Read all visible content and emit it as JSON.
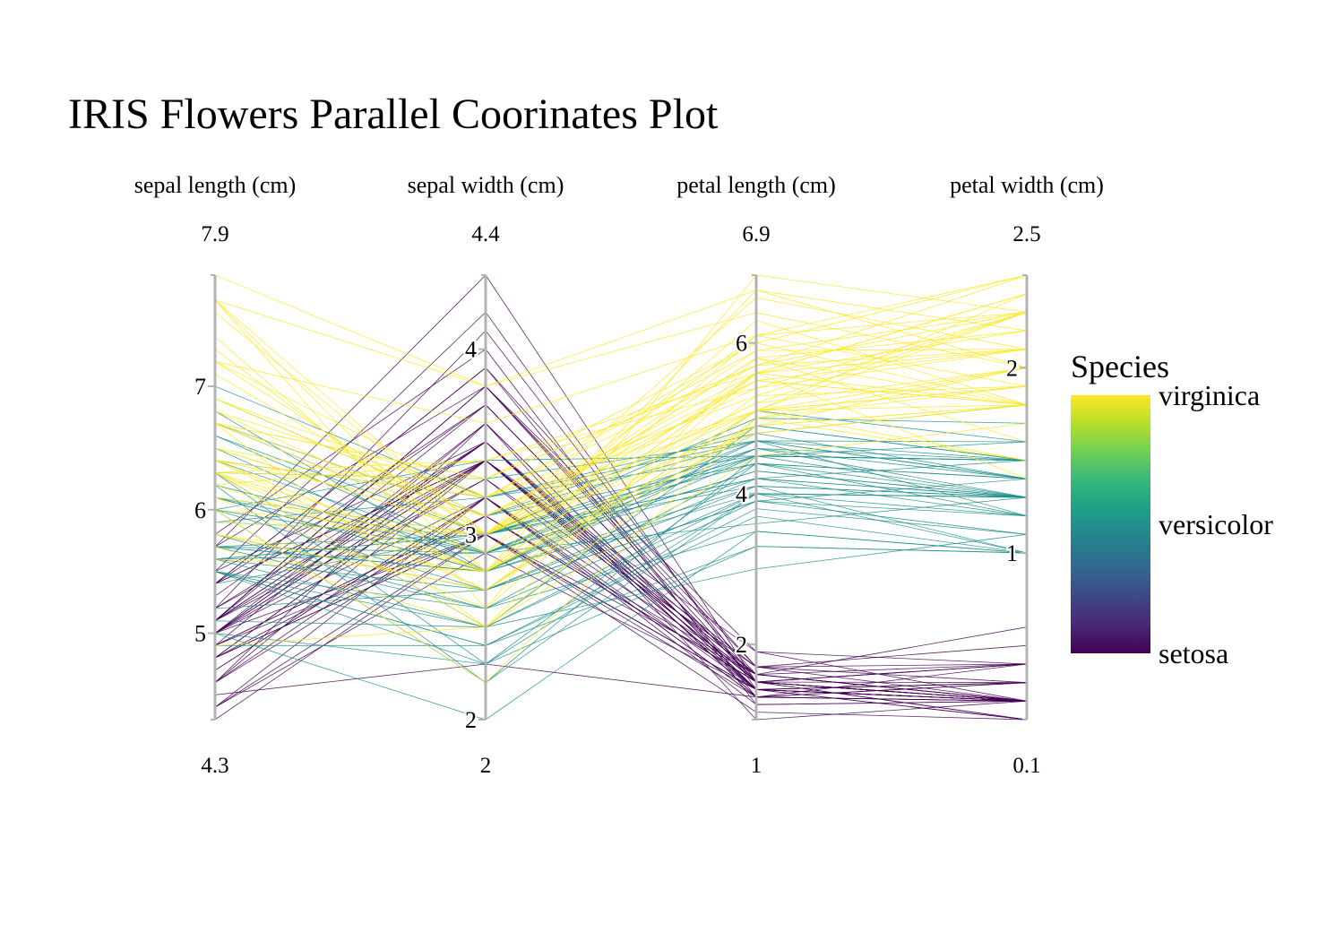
{
  "chart_data": {
    "type": "parallel_coordinates",
    "title": "IRIS Flowers Parallel Coorinates Plot",
    "dimensions": [
      {
        "label": "sepal length (cm)",
        "range": [
          4.3,
          7.9
        ],
        "range_labels": [
          "4.3",
          "7.9"
        ],
        "ticks": [
          5,
          6,
          7
        ]
      },
      {
        "label": "sepal width (cm)",
        "range": [
          2,
          4.4
        ],
        "range_labels": [
          "2",
          "4.4"
        ],
        "ticks": [
          2,
          3,
          4
        ]
      },
      {
        "label": "petal length (cm)",
        "range": [
          1,
          6.9
        ],
        "range_labels": [
          "1",
          "6.9"
        ],
        "ticks": [
          2,
          4,
          6
        ]
      },
      {
        "label": "petal width (cm)",
        "range": [
          0.1,
          2.5
        ],
        "range_labels": [
          "0.1",
          "2.5"
        ],
        "ticks": [
          1,
          2
        ]
      }
    ],
    "color_field": "Species",
    "colorscale": "viridis",
    "legend": {
      "title": "Species",
      "labels": [
        "virginica",
        "versicolor",
        "setosa"
      ],
      "position": "right"
    },
    "colors": {
      "setosa": "#440154",
      "versicolor": "#21918c",
      "virginica": "#fde725",
      "axis": "#b3b3b3"
    },
    "species_order": [
      "setosa",
      "versicolor",
      "virginica"
    ],
    "rows": [
      [
        5.1,
        3.5,
        1.4,
        0.2,
        0
      ],
      [
        4.9,
        3.0,
        1.4,
        0.2,
        0
      ],
      [
        4.7,
        3.2,
        1.3,
        0.2,
        0
      ],
      [
        4.6,
        3.1,
        1.5,
        0.2,
        0
      ],
      [
        5.0,
        3.6,
        1.4,
        0.2,
        0
      ],
      [
        5.4,
        3.9,
        1.7,
        0.4,
        0
      ],
      [
        4.6,
        3.4,
        1.4,
        0.3,
        0
      ],
      [
        5.0,
        3.4,
        1.5,
        0.2,
        0
      ],
      [
        4.4,
        2.9,
        1.4,
        0.2,
        0
      ],
      [
        4.9,
        3.1,
        1.5,
        0.1,
        0
      ],
      [
        5.4,
        3.7,
        1.5,
        0.2,
        0
      ],
      [
        4.8,
        3.4,
        1.6,
        0.2,
        0
      ],
      [
        4.8,
        3.0,
        1.4,
        0.1,
        0
      ],
      [
        4.3,
        3.0,
        1.1,
        0.1,
        0
      ],
      [
        5.8,
        4.0,
        1.2,
        0.2,
        0
      ],
      [
        5.7,
        4.4,
        1.5,
        0.4,
        0
      ],
      [
        5.4,
        3.9,
        1.3,
        0.4,
        0
      ],
      [
        5.1,
        3.5,
        1.4,
        0.3,
        0
      ],
      [
        5.7,
        3.8,
        1.7,
        0.3,
        0
      ],
      [
        5.1,
        3.8,
        1.5,
        0.3,
        0
      ],
      [
        5.4,
        3.4,
        1.7,
        0.2,
        0
      ],
      [
        5.1,
        3.7,
        1.5,
        0.4,
        0
      ],
      [
        4.6,
        3.6,
        1.0,
        0.2,
        0
      ],
      [
        5.1,
        3.3,
        1.7,
        0.5,
        0
      ],
      [
        4.8,
        3.4,
        1.9,
        0.2,
        0
      ],
      [
        5.0,
        3.0,
        1.6,
        0.2,
        0
      ],
      [
        5.0,
        3.4,
        1.6,
        0.4,
        0
      ],
      [
        5.2,
        3.5,
        1.5,
        0.2,
        0
      ],
      [
        5.2,
        3.4,
        1.4,
        0.2,
        0
      ],
      [
        4.7,
        3.2,
        1.6,
        0.2,
        0
      ],
      [
        4.8,
        3.1,
        1.6,
        0.2,
        0
      ],
      [
        5.4,
        3.4,
        1.5,
        0.4,
        0
      ],
      [
        5.2,
        4.1,
        1.5,
        0.1,
        0
      ],
      [
        5.5,
        4.2,
        1.4,
        0.2,
        0
      ],
      [
        4.9,
        3.1,
        1.5,
        0.2,
        0
      ],
      [
        5.0,
        3.2,
        1.2,
        0.2,
        0
      ],
      [
        5.5,
        3.5,
        1.3,
        0.2,
        0
      ],
      [
        4.9,
        3.6,
        1.4,
        0.1,
        0
      ],
      [
        4.4,
        3.0,
        1.3,
        0.2,
        0
      ],
      [
        5.1,
        3.4,
        1.5,
        0.2,
        0
      ],
      [
        5.0,
        3.5,
        1.3,
        0.3,
        0
      ],
      [
        4.5,
        2.3,
        1.3,
        0.3,
        0
      ],
      [
        4.4,
        3.2,
        1.3,
        0.2,
        0
      ],
      [
        5.0,
        3.5,
        1.6,
        0.6,
        0
      ],
      [
        5.1,
        3.8,
        1.9,
        0.4,
        0
      ],
      [
        4.8,
        3.0,
        1.4,
        0.3,
        0
      ],
      [
        5.1,
        3.8,
        1.6,
        0.2,
        0
      ],
      [
        4.6,
        3.2,
        1.4,
        0.2,
        0
      ],
      [
        5.3,
        3.7,
        1.5,
        0.2,
        0
      ],
      [
        5.0,
        3.3,
        1.4,
        0.2,
        0
      ],
      [
        7.0,
        3.2,
        4.7,
        1.4,
        1
      ],
      [
        6.4,
        3.2,
        4.5,
        1.5,
        1
      ],
      [
        6.9,
        3.1,
        4.9,
        1.5,
        1
      ],
      [
        5.5,
        2.3,
        4.0,
        1.3,
        1
      ],
      [
        6.5,
        2.8,
        4.6,
        1.5,
        1
      ],
      [
        5.7,
        2.8,
        4.5,
        1.3,
        1
      ],
      [
        6.3,
        3.3,
        4.7,
        1.6,
        1
      ],
      [
        4.9,
        2.4,
        3.3,
        1.0,
        1
      ],
      [
        6.6,
        2.9,
        4.6,
        1.3,
        1
      ],
      [
        5.2,
        2.7,
        3.9,
        1.4,
        1
      ],
      [
        5.0,
        2.0,
        3.5,
        1.0,
        1
      ],
      [
        5.9,
        3.0,
        4.2,
        1.5,
        1
      ],
      [
        6.0,
        2.2,
        4.0,
        1.0,
        1
      ],
      [
        6.1,
        2.9,
        4.7,
        1.4,
        1
      ],
      [
        5.6,
        2.9,
        3.6,
        1.3,
        1
      ],
      [
        6.7,
        3.1,
        4.4,
        1.4,
        1
      ],
      [
        5.6,
        3.0,
        4.5,
        1.5,
        1
      ],
      [
        5.8,
        2.7,
        4.1,
        1.0,
        1
      ],
      [
        6.2,
        2.2,
        4.5,
        1.5,
        1
      ],
      [
        5.6,
        2.5,
        3.9,
        1.1,
        1
      ],
      [
        5.9,
        3.2,
        4.8,
        1.8,
        1
      ],
      [
        6.1,
        2.8,
        4.0,
        1.3,
        1
      ],
      [
        6.3,
        2.5,
        4.9,
        1.5,
        1
      ],
      [
        6.1,
        2.8,
        4.7,
        1.2,
        1
      ],
      [
        6.4,
        2.9,
        4.3,
        1.3,
        1
      ],
      [
        6.6,
        3.0,
        4.4,
        1.4,
        1
      ],
      [
        6.8,
        2.8,
        4.8,
        1.4,
        1
      ],
      [
        6.7,
        3.0,
        5.0,
        1.7,
        1
      ],
      [
        6.0,
        2.9,
        4.5,
        1.5,
        1
      ],
      [
        5.7,
        2.6,
        3.5,
        1.0,
        1
      ],
      [
        5.5,
        2.4,
        3.8,
        1.1,
        1
      ],
      [
        5.5,
        2.4,
        3.7,
        1.0,
        1
      ],
      [
        5.8,
        2.7,
        3.9,
        1.2,
        1
      ],
      [
        6.0,
        2.7,
        5.1,
        1.6,
        1
      ],
      [
        5.4,
        3.0,
        4.5,
        1.5,
        1
      ],
      [
        6.0,
        3.4,
        4.5,
        1.6,
        1
      ],
      [
        6.7,
        3.1,
        4.7,
        1.5,
        1
      ],
      [
        6.3,
        2.3,
        4.4,
        1.3,
        1
      ],
      [
        5.6,
        3.0,
        4.1,
        1.3,
        1
      ],
      [
        5.5,
        2.5,
        4.0,
        1.3,
        1
      ],
      [
        5.5,
        2.6,
        4.4,
        1.2,
        1
      ],
      [
        6.1,
        3.0,
        4.6,
        1.4,
        1
      ],
      [
        5.8,
        2.6,
        4.0,
        1.2,
        1
      ],
      [
        5.0,
        2.3,
        3.3,
        1.0,
        1
      ],
      [
        5.6,
        2.7,
        4.2,
        1.3,
        1
      ],
      [
        5.7,
        3.0,
        4.2,
        1.2,
        1
      ],
      [
        5.7,
        2.9,
        4.2,
        1.3,
        1
      ],
      [
        6.2,
        2.9,
        4.3,
        1.3,
        1
      ],
      [
        5.1,
        2.5,
        3.0,
        1.1,
        1
      ],
      [
        5.7,
        2.8,
        4.1,
        1.3,
        1
      ],
      [
        6.3,
        3.3,
        6.0,
        2.5,
        2
      ],
      [
        5.8,
        2.7,
        5.1,
        1.9,
        2
      ],
      [
        7.1,
        3.0,
        5.9,
        2.1,
        2
      ],
      [
        6.3,
        2.9,
        5.6,
        1.8,
        2
      ],
      [
        6.5,
        3.0,
        5.8,
        2.2,
        2
      ],
      [
        7.6,
        3.0,
        6.6,
        2.1,
        2
      ],
      [
        4.9,
        2.5,
        4.5,
        1.7,
        2
      ],
      [
        7.3,
        2.9,
        6.3,
        1.8,
        2
      ],
      [
        6.7,
        2.5,
        5.8,
        1.8,
        2
      ],
      [
        7.2,
        3.6,
        6.1,
        2.5,
        2
      ],
      [
        6.5,
        3.2,
        5.1,
        2.0,
        2
      ],
      [
        6.4,
        2.7,
        5.3,
        1.9,
        2
      ],
      [
        6.8,
        3.0,
        5.5,
        2.1,
        2
      ],
      [
        5.7,
        2.5,
        5.0,
        2.0,
        2
      ],
      [
        5.8,
        2.8,
        5.1,
        2.4,
        2
      ],
      [
        6.4,
        3.2,
        5.3,
        2.3,
        2
      ],
      [
        6.5,
        3.0,
        5.5,
        1.8,
        2
      ],
      [
        7.7,
        3.8,
        6.7,
        2.2,
        2
      ],
      [
        7.7,
        2.6,
        6.9,
        2.3,
        2
      ],
      [
        6.0,
        2.2,
        5.0,
        1.5,
        2
      ],
      [
        6.9,
        3.2,
        5.7,
        2.3,
        2
      ],
      [
        5.6,
        2.8,
        4.9,
        2.0,
        2
      ],
      [
        7.7,
        2.8,
        6.7,
        2.0,
        2
      ],
      [
        6.3,
        2.7,
        4.9,
        1.8,
        2
      ],
      [
        6.7,
        3.3,
        5.7,
        2.1,
        2
      ],
      [
        7.2,
        3.2,
        6.0,
        1.8,
        2
      ],
      [
        6.2,
        2.8,
        4.8,
        1.8,
        2
      ],
      [
        6.1,
        3.0,
        4.9,
        1.8,
        2
      ],
      [
        6.4,
        2.8,
        5.6,
        2.1,
        2
      ],
      [
        7.2,
        3.0,
        5.8,
        1.6,
        2
      ],
      [
        7.4,
        2.8,
        6.1,
        1.9,
        2
      ],
      [
        7.9,
        3.8,
        6.4,
        2.0,
        2
      ],
      [
        6.4,
        2.8,
        5.6,
        2.2,
        2
      ],
      [
        6.3,
        2.8,
        5.1,
        1.5,
        2
      ],
      [
        6.1,
        2.6,
        5.6,
        1.4,
        2
      ],
      [
        7.7,
        3.0,
        6.1,
        2.3,
        2
      ],
      [
        6.3,
        3.4,
        5.6,
        2.4,
        2
      ],
      [
        6.4,
        3.1,
        5.5,
        1.8,
        2
      ],
      [
        6.0,
        3.0,
        4.8,
        1.8,
        2
      ],
      [
        6.9,
        3.1,
        5.4,
        2.1,
        2
      ],
      [
        6.7,
        3.1,
        5.6,
        2.4,
        2
      ],
      [
        6.9,
        3.1,
        5.1,
        2.3,
        2
      ],
      [
        5.8,
        2.7,
        5.1,
        1.9,
        2
      ],
      [
        6.8,
        3.2,
        5.9,
        2.3,
        2
      ],
      [
        6.7,
        3.3,
        5.7,
        2.5,
        2
      ],
      [
        6.7,
        3.0,
        5.2,
        2.3,
        2
      ],
      [
        6.3,
        2.5,
        5.0,
        1.9,
        2
      ],
      [
        6.5,
        3.0,
        5.2,
        2.0,
        2
      ],
      [
        6.2,
        3.4,
        5.4,
        2.3,
        2
      ],
      [
        5.9,
        3.0,
        5.1,
        1.8,
        2
      ]
    ]
  }
}
